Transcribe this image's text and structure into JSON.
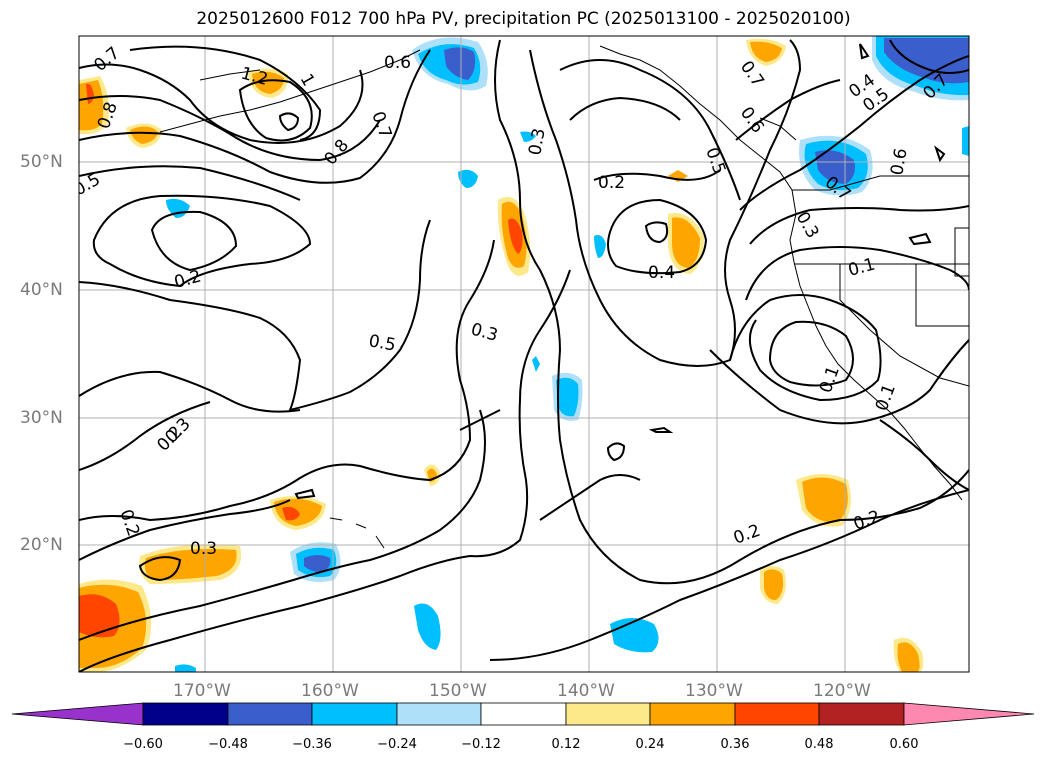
{
  "title": "2025012600 F012 700 hPa PV, precipitation PC (2025013100 - 2025020100)",
  "lat_labels": [
    "50°N",
    "40°N",
    "30°N",
    "20°N"
  ],
  "lon_labels": [
    "170°W",
    "160°W",
    "150°W",
    "140°W",
    "130°W",
    "120°W"
  ],
  "contour_labels": [
    "0.7",
    "1.2",
    "1",
    "0.6",
    "0.8",
    "0.7",
    "0.8",
    "0.5",
    "0.2",
    "0.2",
    "0.2",
    "0.3",
    "0.5",
    "0.3",
    "0.3",
    "0.4",
    "0.2",
    "0.7",
    "0.6",
    "0.5",
    "0.4",
    "0.5",
    "0.7",
    "0.6",
    "0.7",
    "0.1",
    "0.1",
    "0.1",
    "0.2",
    "0.2",
    "0.3",
    "0.3"
  ],
  "colorbar": {
    "ticks": [
      "−0.60",
      "−0.48",
      "−0.36",
      "−0.24",
      "−0.12",
      "0.12",
      "0.24",
      "0.36",
      "0.48",
      "0.60"
    ],
    "colors": [
      "#9932cc",
      "#00008b",
      "#3a5fcd",
      "#00bfff",
      "#aee0fa",
      "#ffffff",
      "#fde88a",
      "#ffa500",
      "#ff4500",
      "#b22222",
      "#ff88b0"
    ]
  },
  "shading_colors": {
    "neg_light": "#aee0fa",
    "neg_mid": "#00bfff",
    "neg_strong": "#3a5fcd",
    "pos_light": "#fde88a",
    "pos_mid": "#ffa500",
    "pos_strong": "#ff4500"
  }
}
